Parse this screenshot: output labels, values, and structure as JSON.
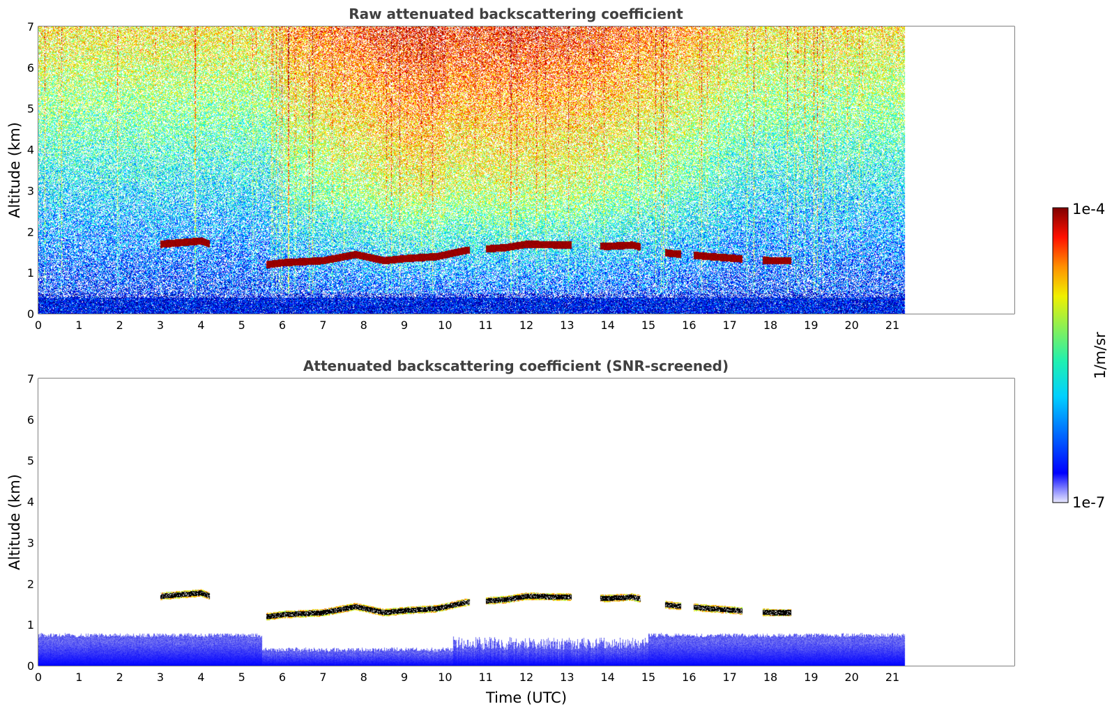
{
  "chart_data": [
    {
      "type": "heatmap",
      "title": "Raw attenuated backscattering coefficient",
      "xlabel": "",
      "ylabel": "Altitude (km)",
      "xlim": [
        0,
        24
      ],
      "ylim": [
        0,
        7
      ],
      "x_ticks": [
        0,
        1,
        2,
        3,
        4,
        5,
        6,
        7,
        8,
        9,
        10,
        11,
        12,
        13,
        14,
        15,
        16,
        17,
        18,
        19,
        20,
        21
      ],
      "y_ticks": [
        0,
        1,
        2,
        3,
        4,
        5,
        6,
        7
      ],
      "data_end_time": 21.3,
      "cloud_layer": [
        {
          "x": 3.0,
          "y": 1.7
        },
        {
          "x": 4.0,
          "y": 1.78
        },
        {
          "x": 5.6,
          "y": 1.2
        },
        {
          "x": 6.0,
          "y": 1.25
        },
        {
          "x": 7.0,
          "y": 1.3
        },
        {
          "x": 7.8,
          "y": 1.45
        },
        {
          "x": 8.5,
          "y": 1.3
        },
        {
          "x": 9.0,
          "y": 1.35
        },
        {
          "x": 9.8,
          "y": 1.4
        },
        {
          "x": 10.5,
          "y": 1.55
        },
        {
          "x": 11.5,
          "y": 1.62
        },
        {
          "x": 12.0,
          "y": 1.7
        },
        {
          "x": 13.0,
          "y": 1.68
        },
        {
          "x": 14.0,
          "y": 1.65
        },
        {
          "x": 14.6,
          "y": 1.68
        },
        {
          "x": 15.5,
          "y": 1.48
        },
        {
          "x": 16.5,
          "y": 1.4
        },
        {
          "x": 17.2,
          "y": 1.35
        },
        {
          "x": 18.0,
          "y": 1.3
        },
        {
          "x": 18.5,
          "y": 1.3
        }
      ],
      "color_scale": "jet",
      "log_scale": true
    },
    {
      "type": "heatmap",
      "title": "Attenuated backscattering coefficient (SNR-screened)",
      "xlabel": "Time (UTC)",
      "ylabel": "Altitude (km)",
      "xlim": [
        0,
        24
      ],
      "ylim": [
        0,
        7
      ],
      "x_ticks": [
        0,
        1,
        2,
        3,
        4,
        5,
        6,
        7,
        8,
        9,
        10,
        11,
        12,
        13,
        14,
        15,
        16,
        17,
        18,
        19,
        20,
        21
      ],
      "y_ticks": [
        0,
        1,
        2,
        3,
        4,
        5,
        6,
        7
      ],
      "data_end_time": 21.3,
      "color_scale": "jet",
      "log_scale": true
    }
  ],
  "colorbar": {
    "max_label": "1e-4",
    "min_label": "1e-7",
    "unit_label": "1/m/sr",
    "range": [
      1e-07,
      0.0001
    ]
  }
}
